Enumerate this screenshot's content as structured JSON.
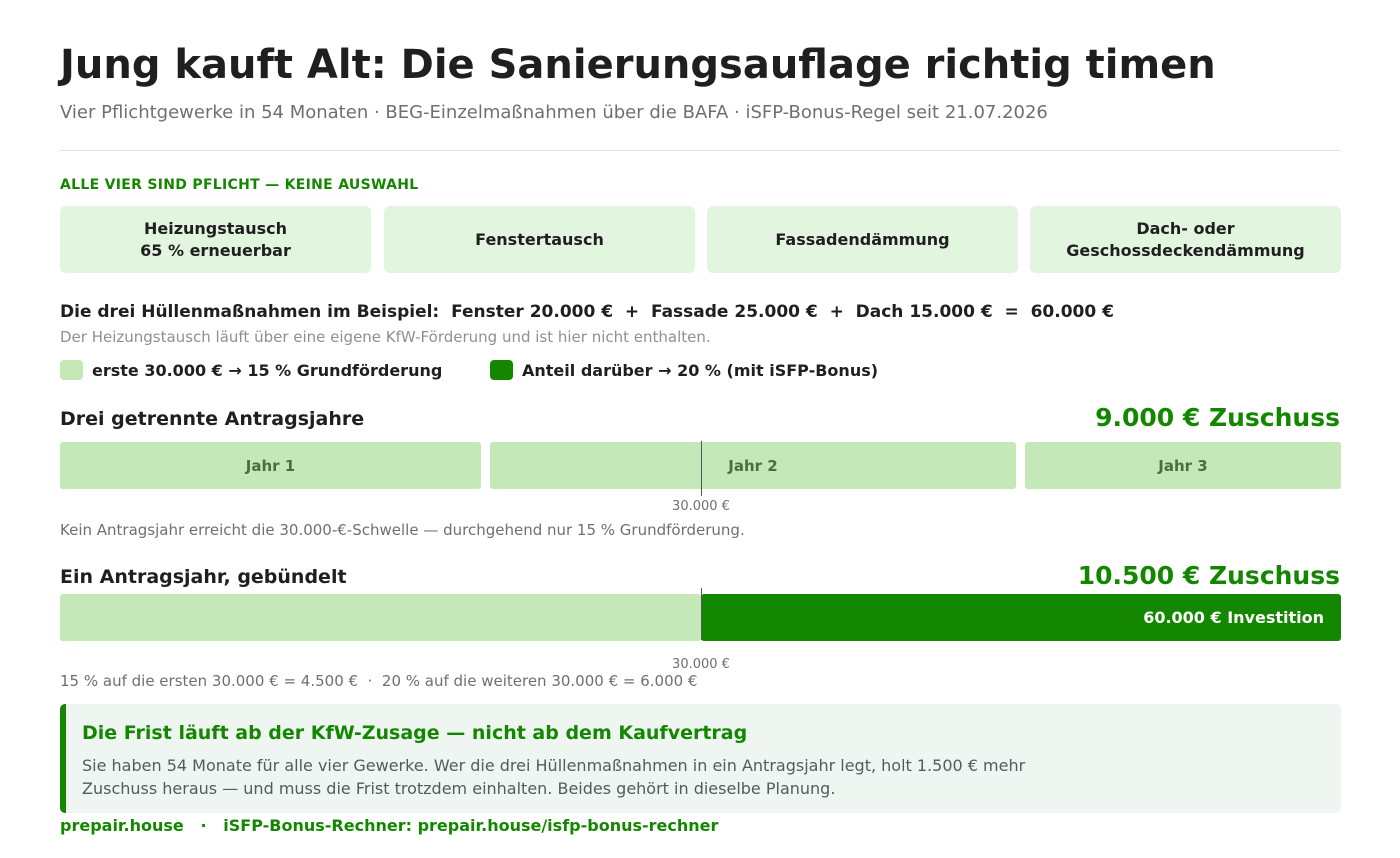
{
  "header": {
    "title": "Jung kauft Alt: Die Sanierungsauflage richtig timen",
    "subtitle": "Vier Pflichtgewerke in 54 Monaten · BEG-Einzelmaßnahmen über die BAFA · iSFP-Bonus-Regel seit 21.07.2026"
  },
  "measures": {
    "label": "ALLE VIER SIND PFLICHT — KEINE AUSWAHL",
    "items": [
      {
        "line1": "Heizungstausch",
        "line2": "65 % erneuerbar"
      },
      {
        "line1": "Fenstertausch",
        "line2": ""
      },
      {
        "line1": "Fassadendämmung",
        "line2": ""
      },
      {
        "line1": "Dach- oder",
        "line2": "Geschossdeckendämmung"
      }
    ]
  },
  "example": {
    "line": "Die drei Hüllenmaßnahmen im Beispiel:  Fenster 20.000 €  +  Fassade 25.000 €  +  Dach 15.000 €  =  60.000 €",
    "note": "Der Heizungstausch läuft über eine eigene KfW-Förderung und ist hier nicht enthalten."
  },
  "legend": {
    "base": "erste 30.000 € → 15 % Grundförderung",
    "bonus": "Anteil darüber → 20 % (mit iSFP-Bonus)"
  },
  "colors": {
    "accent": "#148700",
    "base_fill": "#c4e8b8",
    "bonus_fill": "#148700",
    "card_fill": "#e2f5df",
    "callout_fill": "#eff5f0"
  },
  "chart_data": [
    {
      "type": "bar",
      "title": "Drei getrennte Antragsjahre",
      "result": "9.000 € Zuschuss",
      "xlim": [
        0,
        60000
      ],
      "threshold": 30000,
      "threshold_label": "30.000 €",
      "segments": [
        {
          "label": "Jahr 1",
          "value": 20000,
          "rate": "15 %"
        },
        {
          "label": "Jahr 2",
          "value": 25000,
          "rate": "15 %"
        },
        {
          "label": "Jahr 3",
          "value": 15000,
          "rate": "15 %"
        }
      ],
      "explanation": "Kein Antragsjahr erreicht die 30.000-€-Schwelle — durchgehend nur 15 % Grundförderung."
    },
    {
      "type": "bar",
      "title": "Ein Antragsjahr, gebündelt",
      "result": "10.500 € Zuschuss",
      "xlim": [
        0,
        60000
      ],
      "threshold": 30000,
      "threshold_label": "30.000 €",
      "segments": [
        {
          "label": "",
          "value": 30000,
          "rate": "15 %"
        },
        {
          "label": "60.000 € Investition",
          "value": 30000,
          "rate": "20 %"
        }
      ],
      "explanation": "15 % auf die ersten 30.000 € = 4.500 €  ·  20 % auf die weiteren 30.000 € = 6.000 €"
    }
  ],
  "callout": {
    "title": "Die Frist läuft ab der KfW-Zusage — nicht ab dem Kaufvertrag",
    "text": "Sie haben 54 Monate für alle vier Gewerke. Wer die drei Hüllenmaßnahmen in ein Antragsjahr legt, holt 1.500 € mehr Zuschuss heraus — und muss die Frist trotzdem einhalten. Beides gehört in dieselbe Planung."
  },
  "footer": {
    "text": "prepair.house   ·   iSFP-Bonus-Rechner: prepair.house/isfp-bonus-rechner"
  }
}
